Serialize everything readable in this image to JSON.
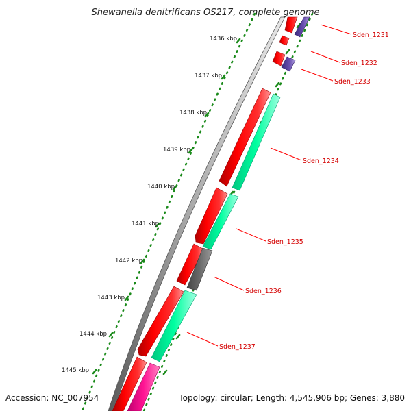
{
  "title": "Shewanella denitrificans OS217, complete genome",
  "footer": {
    "accession": "Accession: NC_007954",
    "topology": "Topology: circular; Length: 4,545,906 bp; Genes: 3,880"
  },
  "ruler": {
    "ticks": [
      {
        "label": "1436 kbp"
      },
      {
        "label": "1437 kbp"
      },
      {
        "label": "1438 kbp"
      },
      {
        "label": "1439 kbp"
      },
      {
        "label": "1440 kbp"
      },
      {
        "label": "1441 kbp"
      },
      {
        "label": "1442 kbp"
      },
      {
        "label": "1443 kbp"
      },
      {
        "label": "1444 kbp"
      },
      {
        "label": "1445 kbp"
      }
    ]
  },
  "genes": [
    {
      "label": "Sden_1231",
      "color": "#ff0000"
    },
    {
      "label": "Sden_1232",
      "color": "#ff0000"
    },
    {
      "label": "Sden_1233",
      "color": "#5a3fa0"
    },
    {
      "label": "Sden_1234",
      "color": "#00ffa0"
    },
    {
      "label": "Sden_1235",
      "color": "#00ffa0"
    },
    {
      "label": "Sden_1236",
      "color": "#666666"
    },
    {
      "label": "Sden_1237",
      "color": "#00ffa0"
    }
  ],
  "colors": {
    "cds": "#ff0000",
    "green": "#00ffa0",
    "grey": "#666666",
    "purple": "#5a3fa0",
    "pink": "#ff1493",
    "dots": "#1a8a1a",
    "label": "#d40000"
  }
}
